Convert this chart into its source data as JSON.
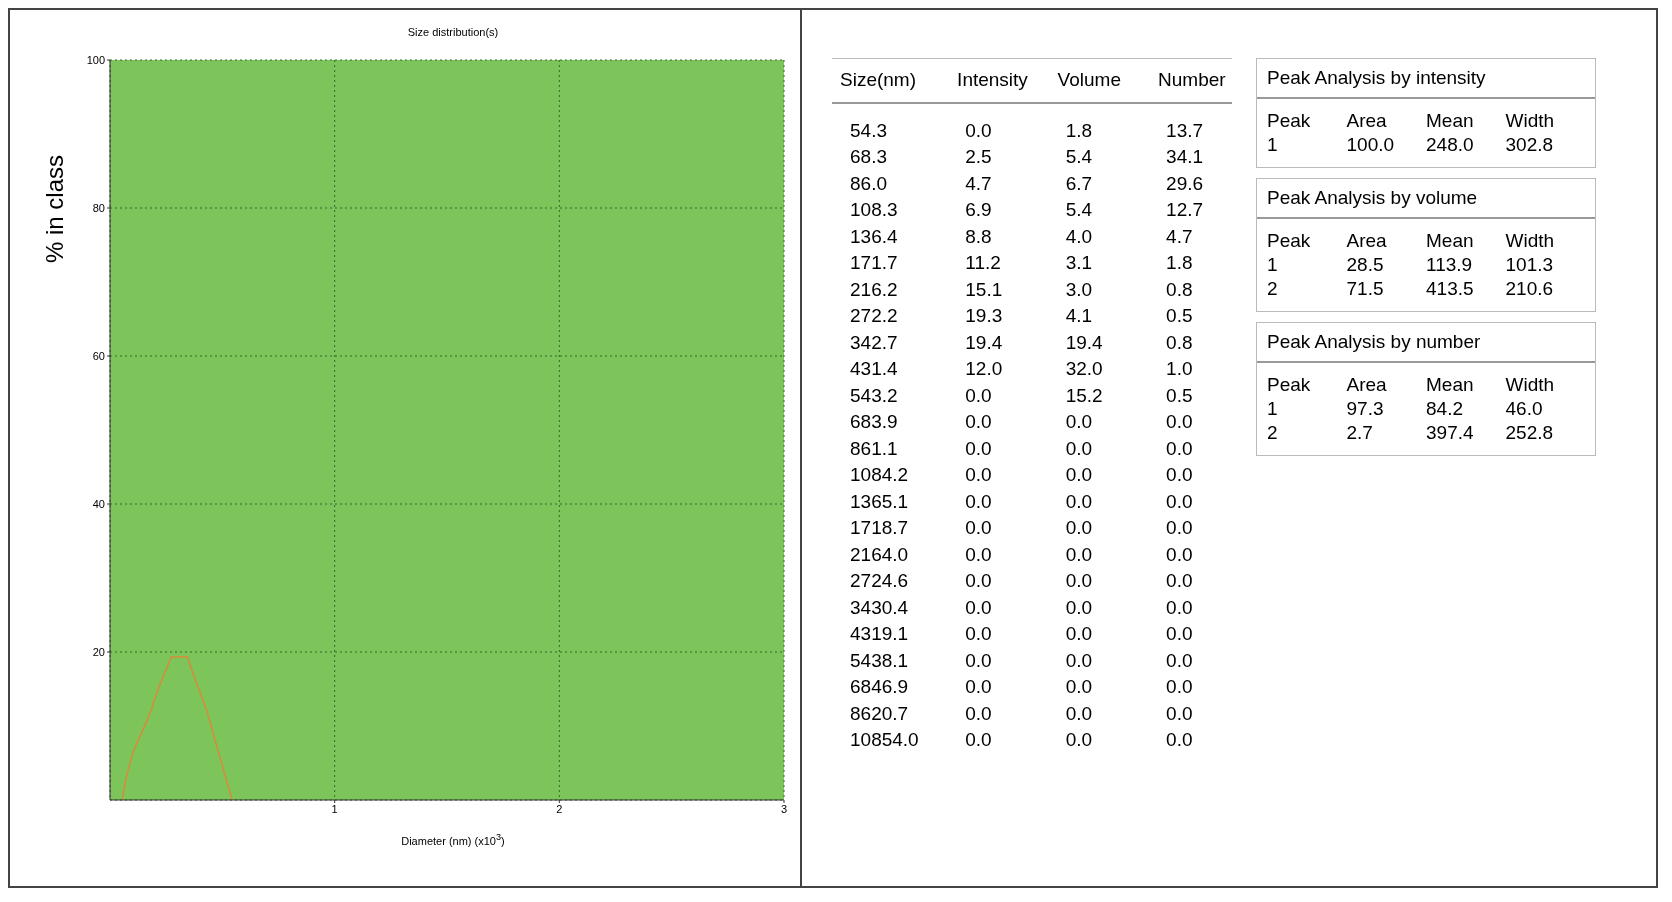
{
  "chart_data": [
    {
      "type": "line",
      "title": "Size distribution(s)",
      "xlabel": "Diameter (nm) (x10$^{3}$)",
      "ylabel": "% in class",
      "xlim": [
        0,
        3
      ],
      "xticks": [
        1,
        2,
        3
      ],
      "ylim": [
        0,
        100
      ],
      "yticks": [
        20,
        40,
        60,
        80,
        100
      ],
      "grid": true,
      "marker": "none",
      "line_style": "solid",
      "series": [
        {
          "color": "#d98a3a",
          "x": [
            0.0543,
            0.0683,
            0.086,
            0.1083,
            0.1364,
            0.1717,
            0.2162,
            0.2722,
            0.3427,
            0.4314,
            0.5432
          ],
          "values": [
            0.0,
            2.5,
            4.7,
            6.9,
            8.8,
            11.2,
            15.1,
            19.3,
            19.4,
            12.0,
            0.0
          ]
        }
      ]
    },
    {
      "type": "other",
      "annotations": [
        "Size(nm)\tIntensity\tVolume\tNumber",
        "54.3\t0.0\t1.8\t13.7",
        "68.3\t2.5\t5.4\t34.1",
        "86.0\t4.7\t6.7\t29.6",
        "108.3\t6.9\t5.4\t12.7",
        "136.4\t8.8\t4.0\t4.7",
        "171.7\t11.2\t3.1\t1.8",
        "216.2\t15.1\t3.0\t0.8",
        "272.2\t19.3\t4.1\t0.5",
        "342.7\t19.4\t19.4\t0.8",
        "431.4\t12.0\t32.0\t1.0",
        "543.2\t0.0\t15.2\t0.5",
        "683.9\t0.0\t0.0\t0.0",
        "861.1\t0.0\t0.0\t0.0",
        "1084.2\t0.0\t0.0\t0.0",
        "1365.1\t0.0\t0.0\t0.0",
        "1718.7\t0.0\t0.0\t0.0",
        "2164.0\t0.0\t0.0\t0.0",
        "2724.6\t0.0\t0.0\t0.0",
        "3430.4\t0.0\t0.0\t0.0",
        "4319.1\t0.0\t0.0\t0.0",
        "5438.1\t0.0\t0.0\t0.0",
        "6846.9\t0.0\t0.0\t0.0",
        "8620.7\t0.0\t0.0\t0.0",
        "10854.0\t0.0\t0.0\t0.0"
      ]
    },
    {
      "type": "other",
      "annotations": [
        "Peak Analysis by intensity",
        "Peak\tArea\tMean\tWidth",
        "1\t100.0\t248.0\t302.8",
        "Peak Analysis by volume",
        "Peak\tArea\tMean\tWidth",
        "1\t28.5\t113.9\t101.3",
        "2\t71.5\t413.5\t210.6",
        "Peak Analysis by number",
        "Peak\tArea\tMean\tWidth",
        "1\t97.3\t84.2\t46.0",
        "2\t2.7\t397.4\t252.8"
      ]
    }
  ]
}
